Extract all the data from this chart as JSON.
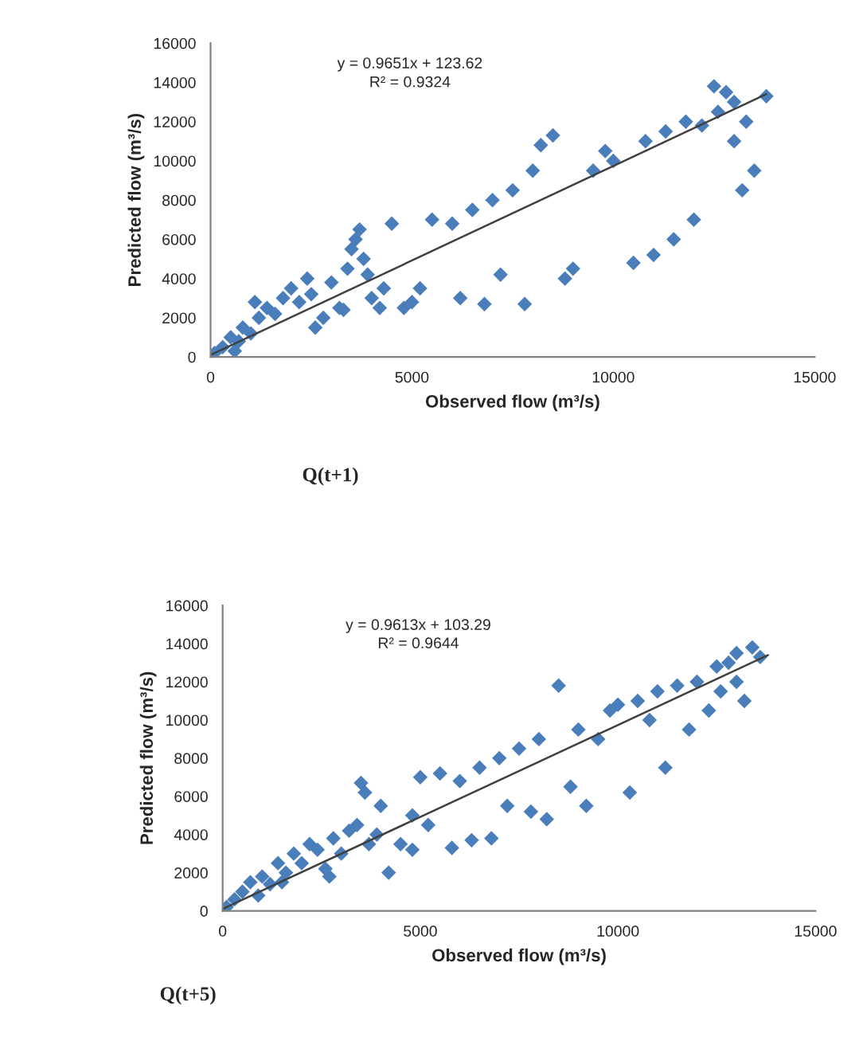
{
  "chart_data": [
    {
      "type": "scatter",
      "xlabel": "Observed flow (m³/s)",
      "ylabel": "Predicted flow (m³/s)",
      "xlim": [
        0,
        15000
      ],
      "ylim": [
        0,
        16000
      ],
      "xticks": [
        0,
        5000,
        10000,
        15000
      ],
      "yticks": [
        0,
        2000,
        4000,
        6000,
        8000,
        10000,
        12000,
        14000,
        16000
      ],
      "grid": false,
      "legend": false,
      "annotations": [
        "y = 0.9651x + 123.62",
        "R² = 0.9324",
        "Q(t+1)"
      ],
      "series": [
        {
          "marker": "diamond",
          "color": "#4a7ebb",
          "x": [
            100,
            300,
            500,
            700,
            800,
            1000,
            1200,
            1400,
            1600,
            1800,
            2000,
            2200,
            2500,
            2600,
            2800,
            3000,
            3200,
            3400,
            3500,
            3600,
            3700,
            3800,
            3900,
            4000,
            4200,
            4500,
            4800,
            5000,
            5200,
            5500,
            6000,
            6200,
            6500,
            6800,
            7000,
            7200,
            7500,
            7800,
            8000,
            8200,
            8500,
            8800,
            9000,
            9500,
            9800,
            10000,
            10500,
            10800,
            11000,
            11300,
            11500,
            11800,
            12000,
            12200,
            12500,
            12800,
            13000,
            13200,
            13500,
            13800,
            13000,
            12600,
            13300,
            2400,
            1100,
            600,
            3300,
            4300
          ],
          "values": [
            200,
            500,
            1000,
            800,
            1500,
            1200,
            2000,
            2500,
            2200,
            3000,
            3500,
            2800,
            3200,
            1500,
            2000,
            3800,
            2500,
            4500,
            5500,
            6000,
            6500,
            5000,
            4200,
            3000,
            2500,
            6800,
            2500,
            2800,
            3500,
            7000,
            6800,
            3000,
            7500,
            2700,
            8000,
            4200,
            8500,
            2700,
            9500,
            10800,
            11300,
            4000,
            4500,
            9500,
            10500,
            10000,
            4800,
            11000,
            5200,
            11500,
            6000,
            12000,
            7000,
            11800,
            13800,
            13500,
            13000,
            8500,
            9500,
            13300,
            11000,
            12500,
            12000,
            4000,
            2800,
            300,
            2400,
            3500
          ]
        },
        {
          "type": "line",
          "marker": "none",
          "color": "#404040",
          "x": [
            0,
            13800
          ],
          "values": [
            100,
            13400
          ]
        }
      ]
    },
    {
      "type": "scatter",
      "xlabel": "Observed flow (m³/s)",
      "ylabel": "Predicted flow (m³/s)",
      "xlim": [
        0,
        15000
      ],
      "ylim": [
        0,
        16000
      ],
      "xticks": [
        0,
        5000,
        10000,
        15000
      ],
      "yticks": [
        0,
        2000,
        4000,
        6000,
        8000,
        10000,
        12000,
        14000,
        16000
      ],
      "grid": false,
      "legend": false,
      "annotations": [
        "y = 0.9613x + 103.29",
        "R² = 0.9644",
        "Q(t+5)"
      ],
      "series": [
        {
          "marker": "diamond",
          "color": "#4a7ebb",
          "x": [
            100,
            300,
            500,
            700,
            900,
            1000,
            1200,
            1400,
            1600,
            1800,
            2000,
            2200,
            2400,
            2600,
            2800,
            3000,
            3200,
            3400,
            3500,
            3700,
            3900,
            4000,
            4200,
            4500,
            4800,
            5000,
            5200,
            5500,
            5800,
            6000,
            6300,
            6500,
            6800,
            7000,
            7200,
            7500,
            7800,
            8000,
            8200,
            8500,
            8800,
            9000,
            9200,
            9500,
            9800,
            10000,
            10300,
            10500,
            10800,
            11000,
            11200,
            11500,
            11800,
            12000,
            12300,
            12500,
            12800,
            13000,
            13200,
            13400,
            13600,
            13000,
            12600,
            3600,
            1500,
            2700,
            4800
          ],
          "values": [
            200,
            600,
            1000,
            1500,
            800,
            1800,
            1400,
            2500,
            2000,
            3000,
            2500,
            3500,
            3200,
            2200,
            3800,
            3000,
            4200,
            4500,
            6700,
            3500,
            4000,
            5500,
            2000,
            3500,
            3200,
            7000,
            4500,
            7200,
            3300,
            6800,
            3700,
            7500,
            3800,
            8000,
            5500,
            8500,
            5200,
            9000,
            4800,
            11800,
            6500,
            9500,
            5500,
            9000,
            10500,
            10800,
            6200,
            11000,
            10000,
            11500,
            7500,
            11800,
            9500,
            12000,
            10500,
            12800,
            13000,
            13500,
            11000,
            13800,
            13300,
            12000,
            11500,
            6200,
            1500,
            1800,
            5000
          ]
        },
        {
          "type": "line",
          "marker": "none",
          "color": "#404040",
          "x": [
            0,
            13800
          ],
          "values": [
            100,
            13400
          ]
        }
      ]
    }
  ]
}
